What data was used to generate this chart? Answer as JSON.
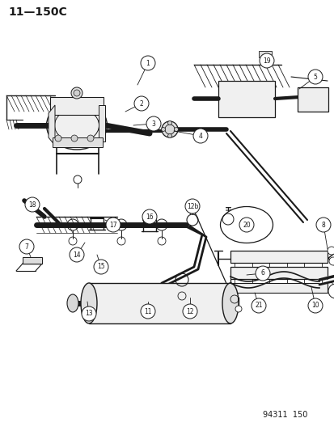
{
  "title": "11—150C",
  "footer": "94311  150",
  "bg_color": "#ffffff",
  "line_color": "#1a1a1a",
  "title_fontsize": 10,
  "footer_fontsize": 7
}
